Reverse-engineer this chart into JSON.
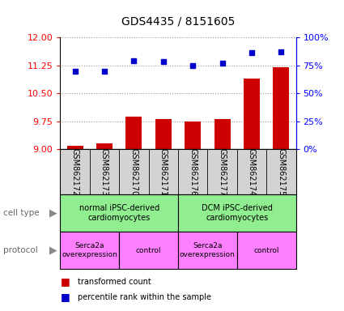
{
  "title": "GDS4435 / 8151605",
  "samples": [
    "GSM862172",
    "GSM862173",
    "GSM862170",
    "GSM862171",
    "GSM862176",
    "GSM862177",
    "GSM862174",
    "GSM862175"
  ],
  "red_values": [
    9.1,
    9.15,
    9.87,
    9.8,
    9.75,
    9.82,
    10.9,
    11.2
  ],
  "blue_values": [
    70,
    70,
    79,
    78,
    75,
    77,
    86,
    87
  ],
  "ylim_left": [
    9,
    12
  ],
  "ylim_right": [
    0,
    100
  ],
  "yticks_left": [
    9,
    9.75,
    10.5,
    11.25,
    12
  ],
  "yticks_right": [
    0,
    25,
    50,
    75,
    100
  ],
  "ytick_labels_right": [
    "0%",
    "25%",
    "50%",
    "75%",
    "100%"
  ],
  "cell_type_labels": [
    "normal iPSC-derived\ncardiomyocytes",
    "DCM iPSC-derived\ncardiomyocytes"
  ],
  "cell_type_color": "#90ee90",
  "protocol_labels": [
    "Serca2a\noverexpression",
    "control",
    "Serca2a\noverexpression",
    "control"
  ],
  "protocol_color": "#ff80ff",
  "bar_color": "#cc0000",
  "scatter_color": "#0000cc",
  "grid_color": "#999999",
  "bg_color": "#ffffff",
  "sample_bg_color": "#d3d3d3",
  "legend_red_label": "transformed count",
  "legend_blue_label": "percentile rank within the sample"
}
